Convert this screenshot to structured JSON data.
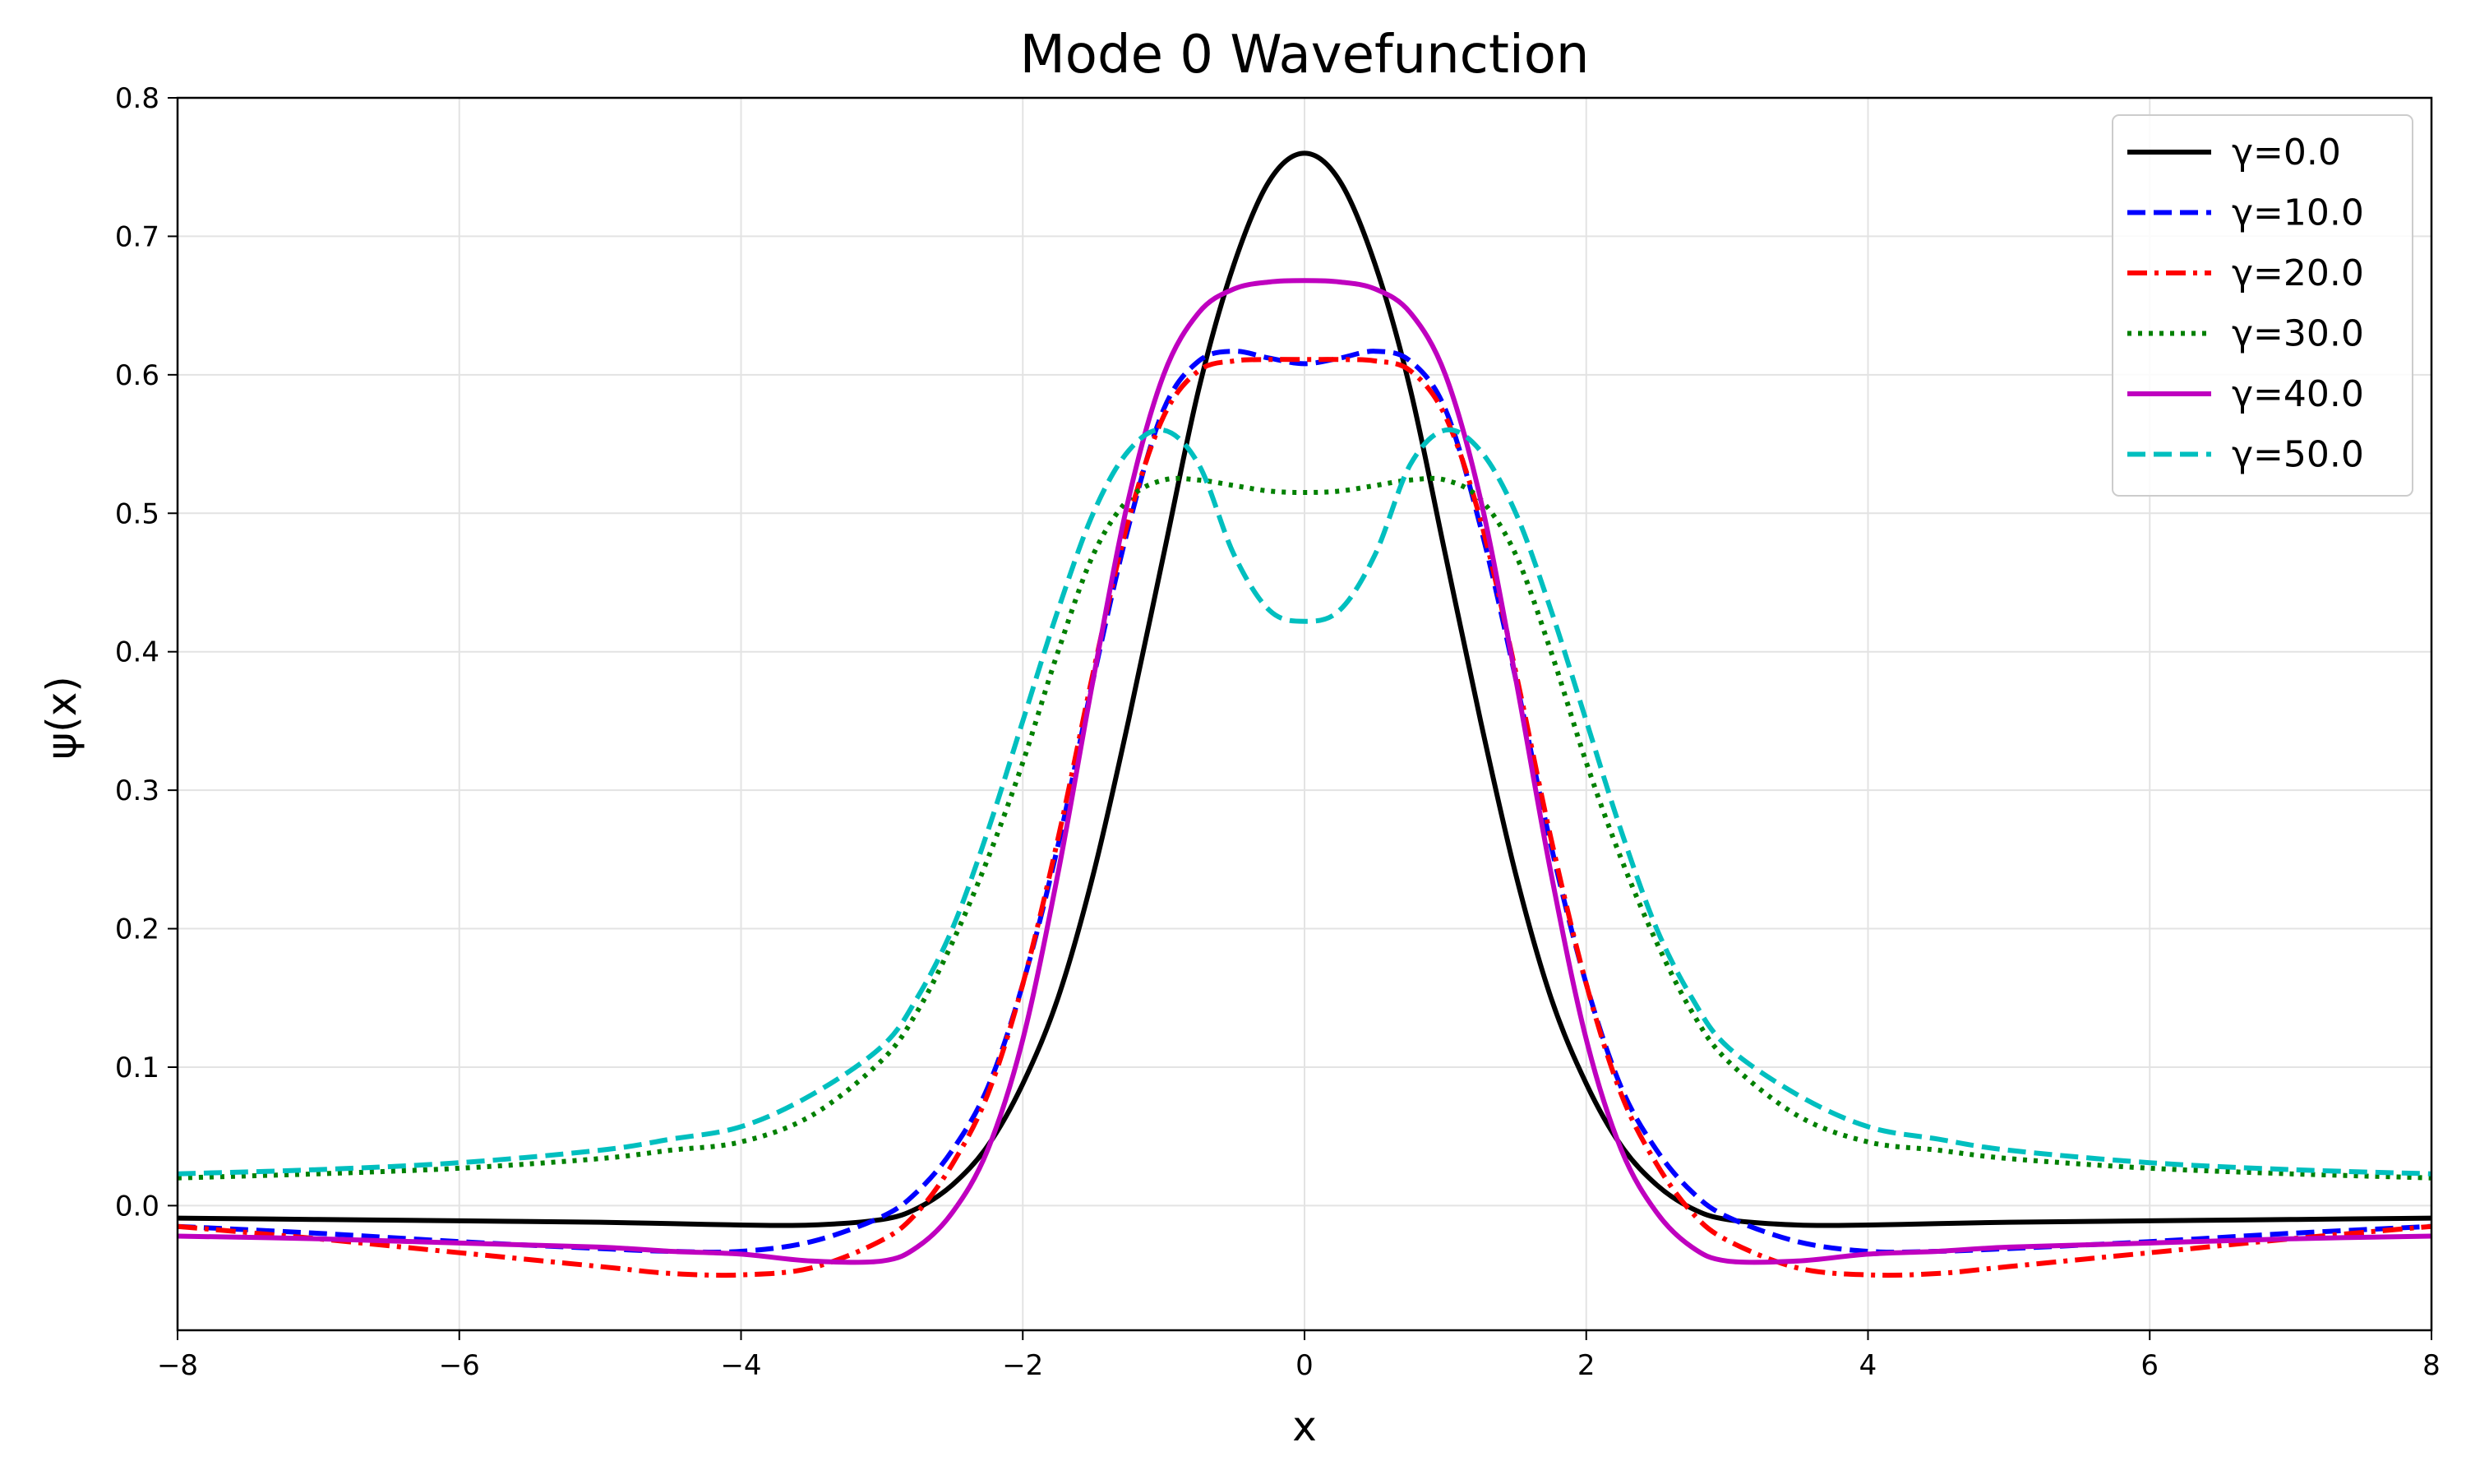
{
  "chart_data": {
    "type": "line",
    "title": "Mode 0 Wavefunction",
    "xlabel": "x",
    "ylabel": "ψ(x)",
    "xlim": [
      -8,
      8
    ],
    "ylim": [
      -0.09,
      0.8
    ],
    "xticks": [
      -8,
      -6,
      -4,
      -2,
      0,
      2,
      4,
      6,
      8
    ],
    "xtick_labels": [
      "−8",
      "−6",
      "−4",
      "−2",
      "0",
      "2",
      "4",
      "6",
      "8"
    ],
    "yticks": [
      0.0,
      0.1,
      0.2,
      0.3,
      0.4,
      0.5,
      0.6,
      0.7,
      0.8
    ],
    "ytick_labels": [
      "0.0",
      "0.1",
      "0.2",
      "0.3",
      "0.4",
      "0.5",
      "0.6",
      "0.7",
      "0.8"
    ],
    "grid": true,
    "legend_position": "top-right",
    "x": [
      -8,
      -7,
      -6,
      -5,
      -4.5,
      -4,
      -3.5,
      -3,
      -2.75,
      -2.5,
      -2.25,
      -2,
      -1.75,
      -1.5,
      -1.25,
      -1,
      -0.75,
      -0.5,
      -0.25,
      0,
      0.25,
      0.5,
      0.75,
      1,
      1.25,
      1.5,
      1.75,
      2,
      2.25,
      2.5,
      2.75,
      3,
      3.5,
      4,
      4.5,
      5,
      6,
      7,
      8
    ],
    "series": [
      {
        "name": "γ=0.0",
        "color": "#000000",
        "dash": "solid",
        "values": [
          -0.009,
          -0.01,
          -0.011,
          -0.012,
          -0.013,
          -0.014,
          -0.014,
          -0.01,
          -0.002,
          0.015,
          0.043,
          0.088,
          0.15,
          0.239,
          0.35,
          0.47,
          0.59,
          0.68,
          0.74,
          0.76,
          0.74,
          0.68,
          0.59,
          0.47,
          0.35,
          0.239,
          0.15,
          0.088,
          0.043,
          0.015,
          -0.002,
          -0.01,
          -0.014,
          -0.014,
          -0.013,
          -0.012,
          -0.011,
          -0.01,
          -0.009
        ]
      },
      {
        "name": "γ=10.0",
        "color": "#0000ff",
        "dash": "dash",
        "values": [
          -0.015,
          -0.02,
          -0.026,
          -0.031,
          -0.033,
          -0.033,
          -0.026,
          -0.008,
          0.01,
          0.04,
          0.085,
          0.16,
          0.26,
          0.38,
          0.49,
          0.575,
          0.61,
          0.617,
          0.612,
          0.608,
          0.612,
          0.617,
          0.61,
          0.575,
          0.49,
          0.38,
          0.26,
          0.16,
          0.085,
          0.04,
          0.01,
          -0.008,
          -0.026,
          -0.033,
          -0.033,
          -0.031,
          -0.026,
          -0.02,
          -0.015
        ]
      },
      {
        "name": "γ=20.0",
        "color": "#ff0000",
        "dash": "dashdot",
        "values": [
          -0.015,
          -0.024,
          -0.034,
          -0.044,
          -0.049,
          -0.05,
          -0.045,
          -0.025,
          -0.005,
          0.03,
          0.08,
          0.16,
          0.265,
          0.385,
          0.495,
          0.57,
          0.603,
          0.61,
          0.611,
          0.611,
          0.611,
          0.61,
          0.603,
          0.57,
          0.495,
          0.385,
          0.265,
          0.16,
          0.08,
          0.03,
          -0.005,
          -0.025,
          -0.045,
          -0.05,
          -0.049,
          -0.044,
          -0.034,
          -0.024,
          -0.015
        ]
      },
      {
        "name": "γ=30.0",
        "color": "#008000",
        "dash": "dot",
        "values": [
          0.02,
          0.023,
          0.027,
          0.034,
          0.04,
          0.046,
          0.065,
          0.105,
          0.14,
          0.19,
          0.25,
          0.32,
          0.4,
          0.47,
          0.51,
          0.524,
          0.524,
          0.52,
          0.516,
          0.515,
          0.516,
          0.52,
          0.524,
          0.524,
          0.51,
          0.47,
          0.4,
          0.32,
          0.25,
          0.19,
          0.14,
          0.105,
          0.065,
          0.046,
          0.04,
          0.034,
          0.027,
          0.023,
          0.02
        ]
      },
      {
        "name": "γ=40.0",
        "color": "#bf00bf",
        "dash": "solid",
        "values": [
          -0.022,
          -0.024,
          -0.027,
          -0.03,
          -0.033,
          -0.035,
          -0.04,
          -0.04,
          -0.03,
          -0.005,
          0.04,
          0.12,
          0.24,
          0.38,
          0.51,
          0.6,
          0.645,
          0.662,
          0.667,
          0.668,
          0.667,
          0.662,
          0.645,
          0.6,
          0.51,
          0.38,
          0.24,
          0.12,
          0.04,
          -0.005,
          -0.03,
          -0.04,
          -0.04,
          -0.035,
          -0.033,
          -0.03,
          -0.027,
          -0.024,
          -0.022
        ]
      },
      {
        "name": "γ=50.0",
        "color": "#00bfbf",
        "dash": "dash",
        "values": [
          0.023,
          0.026,
          0.031,
          0.04,
          0.048,
          0.057,
          0.08,
          0.115,
          0.15,
          0.2,
          0.27,
          0.35,
          0.43,
          0.5,
          0.545,
          0.56,
          0.535,
          0.47,
          0.43,
          0.422,
          0.43,
          0.47,
          0.535,
          0.56,
          0.545,
          0.5,
          0.43,
          0.35,
          0.27,
          0.2,
          0.15,
          0.115,
          0.08,
          0.057,
          0.048,
          0.04,
          0.031,
          0.026,
          0.023
        ]
      }
    ]
  }
}
